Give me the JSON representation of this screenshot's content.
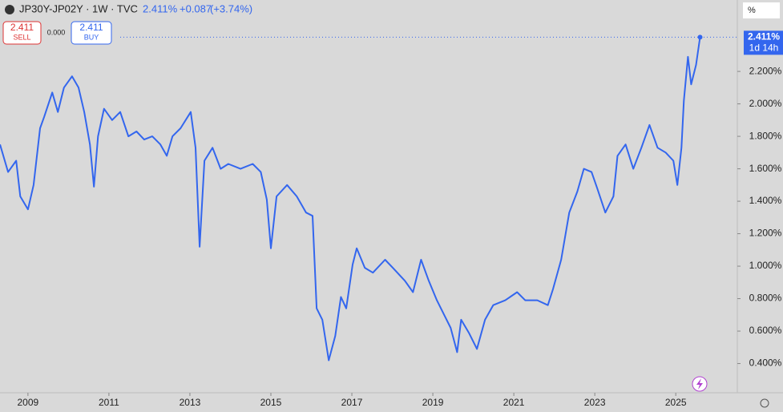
{
  "header": {
    "symbol": "JP30Y-JP02Y · 1W · TVC",
    "last": "2.411%",
    "change": "+0.087",
    "change_pct": "(+3.74%)",
    "sell_price": "2.411",
    "sell": "SELL",
    "spread": "0.000",
    "buy_price": "2.411",
    "buy": "BUY",
    "price_tag": "2.411%",
    "countdown": "1d 14h",
    "scale_unit": "%"
  },
  "chart_data": {
    "type": "line",
    "color": "#3366ee",
    "x": [
      2008.31,
      2008.51,
      2008.71,
      2008.81,
      2009.0,
      2009.14,
      2009.3,
      2009.4,
      2009.6,
      2009.74,
      2009.89,
      2010.09,
      2010.25,
      2010.39,
      2010.53,
      2010.63,
      2010.73,
      2010.88,
      2011.08,
      2011.28,
      2011.48,
      2011.68,
      2011.87,
      2012.07,
      2012.27,
      2012.43,
      2012.57,
      2012.77,
      2013.02,
      2013.14,
      2013.24,
      2013.36,
      2013.56,
      2013.76,
      2013.95,
      2014.25,
      2014.55,
      2014.75,
      2014.9,
      2015.0,
      2015.14,
      2015.4,
      2015.64,
      2015.87,
      2016.03,
      2016.13,
      2016.27,
      2016.43,
      2016.59,
      2016.73,
      2016.86,
      2017.02,
      2017.12,
      2017.32,
      2017.52,
      2017.82,
      2018.01,
      2018.31,
      2018.51,
      2018.71,
      2018.9,
      2019.1,
      2019.3,
      2019.44,
      2019.6,
      2019.7,
      2019.89,
      2020.09,
      2020.29,
      2020.49,
      2020.79,
      2021.08,
      2021.28,
      2021.58,
      2021.84,
      2021.97,
      2022.17,
      2022.37,
      2022.57,
      2022.73,
      2022.92,
      2023.06,
      2023.26,
      2023.46,
      2023.56,
      2023.76,
      2023.95,
      2024.15,
      2024.35,
      2024.55,
      2024.75,
      2024.94,
      2025.04,
      2025.14,
      2025.2,
      2025.3,
      2025.38,
      2025.5,
      2025.6
    ],
    "values": [
      1.75,
      1.58,
      1.65,
      1.43,
      1.35,
      1.5,
      1.85,
      1.92,
      2.07,
      1.95,
      2.1,
      2.17,
      2.1,
      1.95,
      1.75,
      1.49,
      1.8,
      1.97,
      1.9,
      1.95,
      1.8,
      1.83,
      1.78,
      1.8,
      1.75,
      1.68,
      1.8,
      1.85,
      1.95,
      1.73,
      1.12,
      1.65,
      1.73,
      1.6,
      1.63,
      1.6,
      1.63,
      1.58,
      1.41,
      1.11,
      1.43,
      1.5,
      1.43,
      1.33,
      1.31,
      0.74,
      0.67,
      0.42,
      0.57,
      0.81,
      0.74,
      1.01,
      1.11,
      0.99,
      0.96,
      1.04,
      0.99,
      0.91,
      0.84,
      1.04,
      0.91,
      0.79,
      0.69,
      0.62,
      0.47,
      0.67,
      0.59,
      0.49,
      0.67,
      0.76,
      0.79,
      0.84,
      0.79,
      0.79,
      0.76,
      0.86,
      1.04,
      1.33,
      1.46,
      1.6,
      1.58,
      1.48,
      1.33,
      1.43,
      1.68,
      1.75,
      1.6,
      1.73,
      1.87,
      1.73,
      1.7,
      1.65,
      1.5,
      1.73,
      2.02,
      2.29,
      2.12,
      2.24,
      2.411
    ],
    "xlim": [
      2008.31,
      2026.52
    ],
    "ylim": [
      0.22,
      2.64
    ],
    "xticks": [
      2009,
      2011,
      2013,
      2015,
      2017,
      2019,
      2021,
      2023,
      2025
    ],
    "yticks": [
      {
        "value": 0.4,
        "label": "0.400%"
      },
      {
        "value": 0.6,
        "label": "0.600%"
      },
      {
        "value": 0.8,
        "label": "0.800%"
      },
      {
        "value": 1.0,
        "label": "1.000%"
      },
      {
        "value": 1.2,
        "label": "1.200%"
      },
      {
        "value": 1.4,
        "label": "1.400%"
      },
      {
        "value": 1.6,
        "label": "1.600%"
      },
      {
        "value": 1.8,
        "label": "1.800%"
      },
      {
        "value": 2.0,
        "label": "2.000%"
      },
      {
        "value": 2.2,
        "label": "2.200%"
      }
    ]
  }
}
